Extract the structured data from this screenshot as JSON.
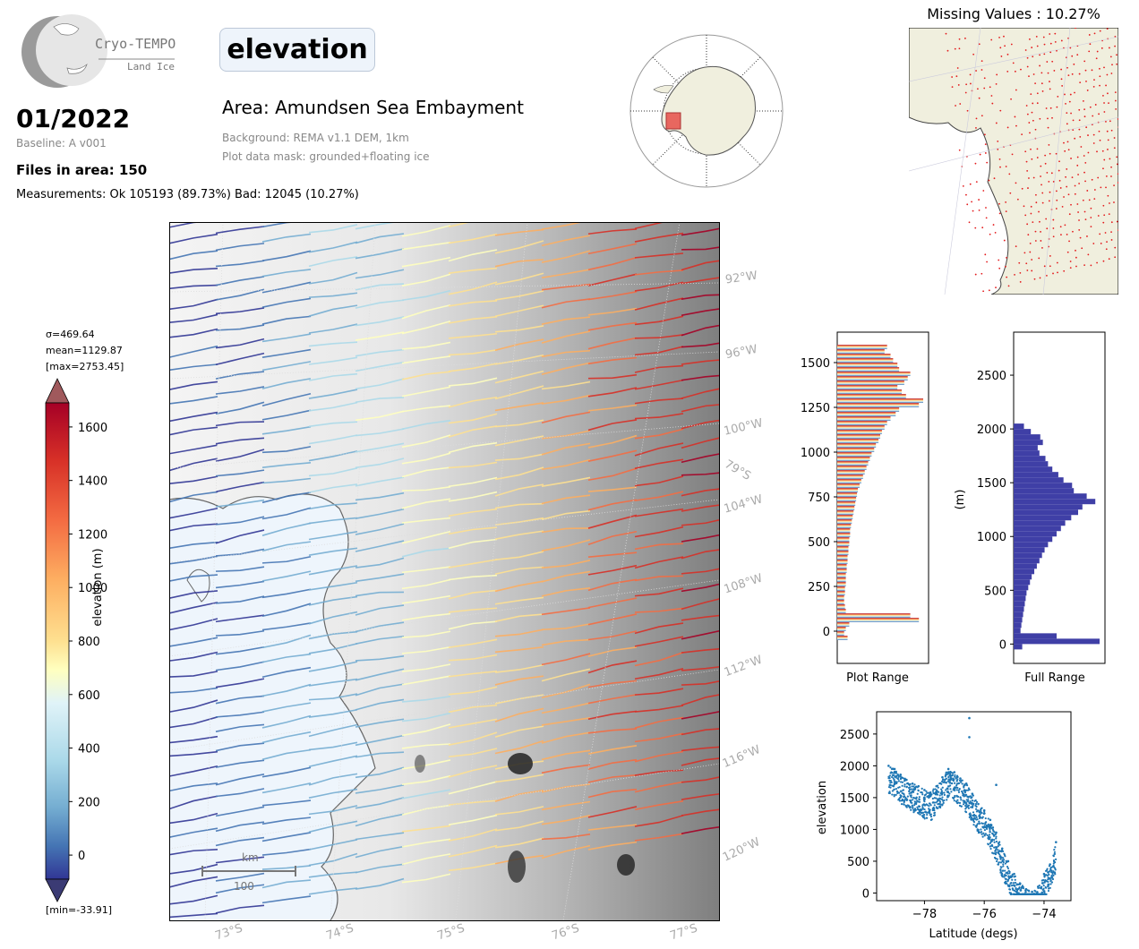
{
  "logo": {
    "name": "Cryo-TEMPO",
    "sub": "Land Ice"
  },
  "header": {
    "title": "elevation",
    "date": "01/2022",
    "baseline": "Baseline: A v001",
    "files": "Files in area: 150",
    "measurements": "Measurements: Ok 105193 (89.73%) Bad: 12045 (10.27%)",
    "area": "Area: Amundsen Sea Embayment",
    "background": "Background: REMA v1.1 DEM, 1km",
    "mask": "Plot data mask: grounded+floating ice"
  },
  "missing": {
    "title": "Missing Values : 10.27%"
  },
  "stats": {
    "sigma": "σ=469.64",
    "mean": "mean=1129.87",
    "max": "[max=2753.45]",
    "min": "[min=-33.91]"
  },
  "colorbar": {
    "label": "elevation (m)",
    "ticks": [
      "1600",
      "1400",
      "1200",
      "1000",
      "800",
      "600",
      "400",
      "200",
      "0"
    ]
  },
  "map": {
    "lon_labels": [
      "92°W",
      "96°W",
      "100°W",
      "104°W",
      "108°W",
      "112°W",
      "116°W",
      "120°W"
    ],
    "lat_labels": [
      "73°S",
      "74°S",
      "75°S",
      "76°S",
      "77°S"
    ],
    "lat_inner": "79°S",
    "scalebar_unit": "km",
    "scalebar_value": "100"
  },
  "hist_plot": {
    "xlabel": "Plot Range",
    "yticks": [
      "1500",
      "1250",
      "1000",
      "750",
      "500",
      "250",
      "0"
    ]
  },
  "hist_full": {
    "xlabel": "Full Range",
    "ylabel": "(m)",
    "yticks": [
      "2500",
      "2000",
      "1500",
      "1000",
      "500",
      "0"
    ]
  },
  "chart_data": [
    {
      "type": "bar",
      "title": "",
      "xlabel": "Plot Range",
      "ylabel": "",
      "ylim": [
        -180,
        1670
      ],
      "orientation": "horizontal",
      "bins": [
        -50,
        -25,
        0,
        25,
        50,
        75,
        100,
        125,
        150,
        175,
        200,
        225,
        250,
        275,
        300,
        325,
        350,
        375,
        400,
        425,
        450,
        475,
        500,
        525,
        550,
        575,
        600,
        625,
        650,
        675,
        700,
        725,
        750,
        775,
        800,
        825,
        850,
        875,
        900,
        925,
        950,
        975,
        1000,
        1025,
        1050,
        1075,
        1100,
        1125,
        1150,
        1175,
        1200,
        1225,
        1250,
        1275,
        1300,
        1325,
        1350,
        1375,
        1400,
        1425,
        1450,
        1475,
        1500,
        1525,
        1550,
        1575
      ],
      "values": [
        12,
        8,
        10,
        14,
        95,
        85,
        10,
        9,
        8,
        8,
        9,
        9,
        10,
        10,
        10,
        11,
        11,
        12,
        12,
        13,
        13,
        14,
        14,
        15,
        15,
        16,
        17,
        18,
        19,
        20,
        21,
        22,
        23,
        24,
        26,
        28,
        30,
        32,
        34,
        36,
        38,
        40,
        43,
        45,
        48,
        50,
        52,
        55,
        58,
        62,
        68,
        72,
        95,
        100,
        80,
        75,
        70,
        78,
        82,
        85,
        72,
        70,
        65,
        62,
        55,
        58
      ]
    },
    {
      "type": "bar",
      "title": "",
      "xlabel": "Full Range",
      "ylabel": "(m)",
      "ylim": [
        -180,
        2900
      ],
      "orientation": "horizontal",
      "bins": [
        -50,
        0,
        50,
        100,
        150,
        200,
        250,
        300,
        350,
        400,
        450,
        500,
        550,
        600,
        650,
        700,
        750,
        800,
        850,
        900,
        950,
        1000,
        1050,
        1100,
        1150,
        1200,
        1250,
        1300,
        1350,
        1400,
        1450,
        1500,
        1550,
        1600,
        1650,
        1700,
        1750,
        1800,
        1850,
        1900,
        1950,
        2000
      ],
      "values": [
        10,
        100,
        50,
        8,
        9,
        10,
        11,
        12,
        13,
        14,
        15,
        17,
        19,
        21,
        24,
        27,
        30,
        33,
        36,
        40,
        45,
        50,
        55,
        60,
        67,
        75,
        80,
        95,
        85,
        70,
        68,
        58,
        52,
        45,
        40,
        37,
        30,
        28,
        34,
        31,
        20,
        12
      ]
    },
    {
      "type": "scatter",
      "title": "",
      "xlabel": "Latitude (degs)",
      "ylabel": "elevation",
      "xlim": [
        -79.6,
        -73.1
      ],
      "ylim": [
        -120,
        2850
      ],
      "xticks": [
        -78,
        -76,
        -74
      ],
      "yticks": [
        0,
        500,
        1000,
        1500,
        2000,
        2500
      ],
      "points": [
        [
          -79.2,
          2000
        ],
        [
          -79.0,
          1950
        ],
        [
          -78.8,
          1860
        ],
        [
          -78.6,
          1780
        ],
        [
          -78.4,
          1720
        ],
        [
          -78.2,
          1680
        ],
        [
          -78.0,
          1620
        ],
        [
          -77.8,
          1580
        ],
        [
          -77.6,
          1680
        ],
        [
          -77.4,
          1820
        ],
        [
          -77.2,
          1950
        ],
        [
          -77.0,
          1900
        ],
        [
          -76.8,
          1800
        ],
        [
          -76.6,
          1720
        ],
        [
          -76.4,
          1560
        ],
        [
          -76.2,
          1400
        ],
        [
          -76.0,
          1300
        ],
        [
          -75.8,
          1150
        ],
        [
          -75.6,
          950
        ],
        [
          -75.4,
          700
        ],
        [
          -75.2,
          500
        ],
        [
          -75.0,
          300
        ],
        [
          -74.8,
          150
        ],
        [
          -74.6,
          60
        ],
        [
          -74.4,
          20
        ],
        [
          -74.2,
          100
        ],
        [
          -74.0,
          300
        ],
        [
          -73.8,
          450
        ],
        [
          -73.6,
          800
        ],
        [
          -76.5,
          2450
        ],
        [
          -76.5,
          2750
        ],
        [
          -75.6,
          1700
        ],
        [
          -77.5,
          1400
        ],
        [
          -78.0,
          1500
        ]
      ]
    }
  ],
  "colors": {
    "histFull": "#3f3fa6",
    "scatter": "#1f77b4",
    "land": "#f0efde",
    "ocean": "#eef5fc"
  }
}
